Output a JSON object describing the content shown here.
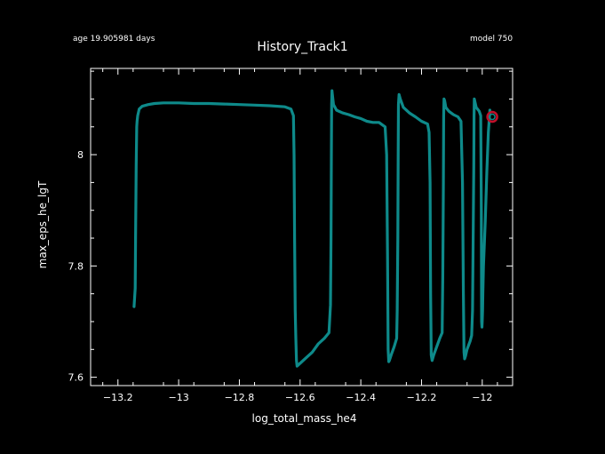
{
  "header": {
    "age": "age 19.905981 days",
    "model": "model 750"
  },
  "chart_data": {
    "type": "line",
    "title": "History_Track1",
    "xlabel": "log_total_mass_he4",
    "ylabel": "max_eps_he_lgT",
    "xlim": [
      -13.29,
      -11.9
    ],
    "ylim": [
      7.585,
      8.155
    ],
    "xticks": [
      -13.2,
      -13.0,
      -12.8,
      -12.6,
      -12.4,
      -12.2,
      -12.0
    ],
    "xtick_labels": [
      "−13.2",
      "−13",
      "−12.8",
      "−12.6",
      "−12.4",
      "−12.2",
      "−12"
    ],
    "yticks": [
      7.6,
      7.8,
      8.0
    ],
    "ytick_labels": [
      "7.6",
      "7.8",
      "8"
    ],
    "grid": false,
    "line_color": "#0e8a8a",
    "marker_color": "#c0102a",
    "series": [
      {
        "x": [
          -13.147,
          -13.143,
          -13.142,
          -13.14,
          -13.138,
          -13.137,
          -13.135,
          -13.13,
          -13.12,
          -13.1,
          -13.08,
          -13.05,
          -13.0,
          -12.95,
          -12.9,
          -12.85,
          -12.8,
          -12.75,
          -12.7,
          -12.65,
          -12.63,
          -12.622,
          -12.62,
          -12.618,
          -12.616,
          -12.614,
          -12.612,
          -12.61,
          -12.6,
          -12.58,
          -12.56,
          -12.54,
          -12.52,
          -12.505,
          -12.5,
          -12.498,
          -12.497,
          -12.496,
          -12.495,
          -12.494,
          -12.49,
          -12.48,
          -12.46,
          -12.44,
          -12.42,
          -12.4,
          -12.38,
          -12.36,
          -12.34,
          -12.32,
          -12.315,
          -12.312,
          -12.31,
          -12.308,
          -12.306,
          -12.3,
          -12.29,
          -12.282,
          -12.28,
          -12.278,
          -12.277,
          -12.276,
          -12.274,
          -12.27,
          -12.26,
          -12.24,
          -12.22,
          -12.2,
          -12.18,
          -12.175,
          -12.172,
          -12.17,
          -12.168,
          -12.165,
          -12.16,
          -12.15,
          -12.14,
          -12.132,
          -12.13,
          -12.128,
          -12.127,
          -12.126,
          -12.124,
          -12.12,
          -12.11,
          -12.095,
          -12.08,
          -12.07,
          -12.065,
          -12.062,
          -12.06,
          -12.058,
          -12.055,
          -12.05,
          -12.04,
          -12.035,
          -12.032,
          -12.03,
          -12.028,
          -12.027,
          -12.026,
          -12.024,
          -12.02,
          -12.01,
          -12.005,
          -12.003,
          -12.002,
          -12.001,
          -12.0,
          -11.999,
          -11.998,
          -11.996,
          -11.99,
          -11.985,
          -11.98,
          -11.975
        ],
        "y": [
          7.727,
          7.76,
          7.85,
          7.98,
          8.05,
          8.06,
          8.07,
          8.082,
          8.087,
          8.09,
          8.092,
          8.093,
          8.093,
          8.092,
          8.092,
          8.091,
          8.09,
          8.089,
          8.088,
          8.086,
          8.082,
          8.07,
          8.0,
          7.85,
          7.72,
          7.67,
          7.63,
          7.62,
          7.625,
          7.635,
          7.645,
          7.66,
          7.67,
          7.68,
          7.73,
          7.85,
          8.0,
          8.09,
          8.115,
          8.11,
          8.09,
          8.08,
          8.075,
          8.072,
          8.068,
          8.065,
          8.06,
          8.058,
          8.058,
          8.05,
          8.0,
          7.82,
          7.65,
          7.628,
          7.63,
          7.64,
          7.655,
          7.67,
          7.72,
          7.85,
          8.0,
          8.09,
          8.108,
          8.1,
          8.085,
          8.075,
          8.068,
          8.06,
          8.055,
          8.04,
          7.95,
          7.75,
          7.64,
          7.63,
          7.64,
          7.655,
          7.67,
          7.68,
          7.78,
          7.95,
          8.07,
          8.1,
          8.097,
          8.085,
          8.078,
          8.072,
          8.068,
          8.06,
          7.95,
          7.75,
          7.645,
          7.633,
          7.638,
          7.65,
          7.665,
          7.675,
          7.72,
          7.85,
          7.98,
          8.07,
          8.1,
          8.095,
          8.085,
          8.078,
          8.07,
          7.9,
          7.7,
          7.69,
          7.7,
          7.72,
          7.75,
          7.8,
          7.88,
          7.97,
          8.04,
          8.08
        ],
        "end_marker": {
          "x": -11.967,
          "y": 8.068
        }
      }
    ]
  }
}
